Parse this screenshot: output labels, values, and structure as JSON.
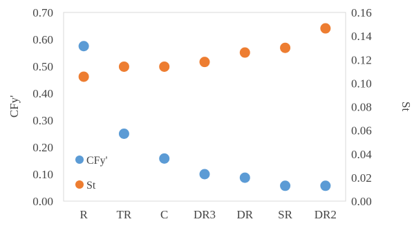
{
  "chart_data": {
    "type": "scatter",
    "categories": [
      "R",
      "TR",
      "C",
      "DR3",
      "DR",
      "SR",
      "DR2"
    ],
    "series": [
      {
        "name": "CFy'",
        "axis": "left",
        "color": "#5B9BD5",
        "values": [
          0.575,
          0.25,
          0.158,
          0.1,
          0.087,
          0.057,
          0.057
        ]
      },
      {
        "name": "St",
        "axis": "right",
        "color": "#ED7D31",
        "values": [
          0.1055,
          0.114,
          0.114,
          0.118,
          0.126,
          0.13,
          0.1465
        ]
      }
    ],
    "ylabel": "CFy'",
    "ylabel_right": "St",
    "ylim": [
      0,
      0.7
    ],
    "ylim_right": [
      0,
      0.16
    ],
    "yticks": [
      "0.00",
      "0.10",
      "0.20",
      "0.30",
      "0.40",
      "0.50",
      "0.60",
      "0.70"
    ],
    "yticks_right": [
      "0.00",
      "0.02",
      "0.04",
      "0.06",
      "0.08",
      "0.10",
      "0.12",
      "0.14",
      "0.16"
    ],
    "grid": false,
    "legend_position": "inside-bottom-left"
  }
}
